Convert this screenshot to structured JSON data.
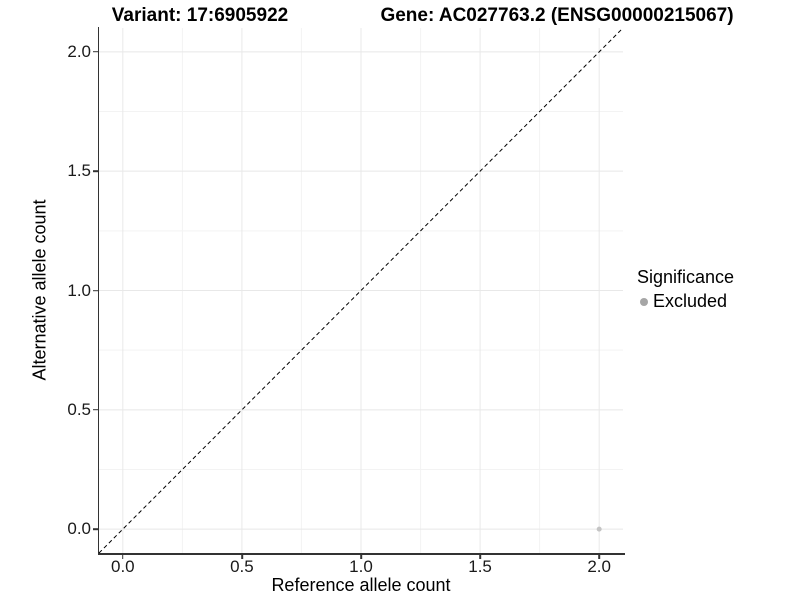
{
  "header": {
    "variant_title": "Variant: 17:6905922",
    "gene_title": "Gene: AC027763.2 (ENSG00000215067)"
  },
  "chart_data": {
    "type": "scatter",
    "title": "",
    "xlabel": "Reference allele count",
    "ylabel": "Alternative allele count",
    "xlim": [
      -0.1,
      2.1
    ],
    "ylim": [
      -0.1,
      2.1
    ],
    "x_ticks": {
      "values": [
        0,
        0.5,
        1,
        1.5,
        2
      ],
      "labels": [
        "0.0",
        "0.5",
        "1.0",
        "1.5",
        "2.0"
      ]
    },
    "y_ticks": {
      "values": [
        0,
        0.5,
        1,
        1.5,
        2
      ],
      "labels": [
        "0.0",
        "0.5",
        "1.0",
        "1.5",
        "2.0"
      ]
    },
    "x_minor_ticks": [
      0.25,
      0.75,
      1.25,
      1.75
    ],
    "y_minor_ticks": [
      0.25,
      0.75,
      1.25,
      1.75
    ],
    "grid": true,
    "reference_line": {
      "type": "identity",
      "slope": 1,
      "intercept": 0,
      "style": "dashed",
      "color": "#000000"
    },
    "points": [
      {
        "x": 2.0,
        "y": 0.0,
        "series": "Excluded"
      }
    ],
    "series_colors": {
      "Excluded": "#c4c4c4"
    },
    "legend": {
      "title": "Significance",
      "position": "right",
      "items": [
        {
          "label": "Excluded",
          "color": "#a6a6a6"
        }
      ]
    }
  },
  "colors": {
    "background": "#ffffff",
    "grid_major": "#e8e8e8",
    "grid_minor": "#f3f3f3",
    "axis_line": "#333333",
    "tick_label": "#1a1a1a",
    "point": "#c4c4c4",
    "legend_key": "#a6a6a6"
  }
}
